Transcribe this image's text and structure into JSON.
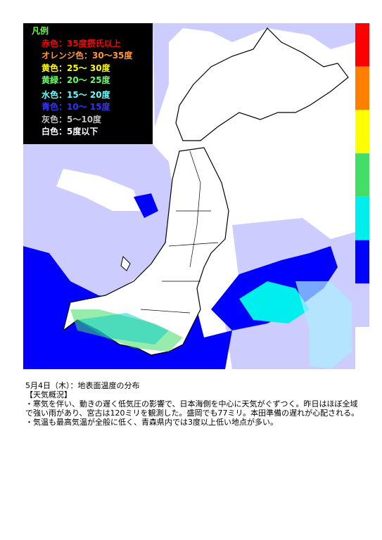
{
  "legend": {
    "title": "凡例",
    "items": [
      {
        "label": "赤色：35度摂氏以上",
        "color": "#ff0000"
      },
      {
        "label": "オレンジ色：30～35度",
        "color": "#ff9933"
      },
      {
        "label": "黄色：25～ 30度",
        "color": "#ffff00"
      },
      {
        "label": "黄緑：20～ 25度",
        "color": "#66ff66"
      },
      {
        "label": "水色：15～ 20度",
        "color": "#66ffff"
      },
      {
        "label": "青色：10～ 15度",
        "color": "#3333ff"
      },
      {
        "label": "灰色：5～10度",
        "color": "#c0c0c0"
      },
      {
        "label": "白色：5度以下",
        "color": "#ffffff"
      }
    ]
  },
  "colorbar": [
    "#ff0000",
    "#ff7f00",
    "#ffff00",
    "#44dd66",
    "#00eeee",
    "#0000ff",
    "#ccccff"
  ],
  "caption": {
    "title": "5月4日（木）：地表面温度の分布",
    "heading": "【天気概況】",
    "bullets": [
      "・寒気を伴い、動きの遅く低気圧の影響で、日本海側を中心に天気がぐずつく。昨日はほぼ全域で強い雨があり、宮古は120ミリを観測した。盛岡でも77ミリ。本田準備の遅れが心配される。",
      "・気温も最高気温が全般に低く、青森県内では3度以上低い地点が多い。"
    ]
  }
}
